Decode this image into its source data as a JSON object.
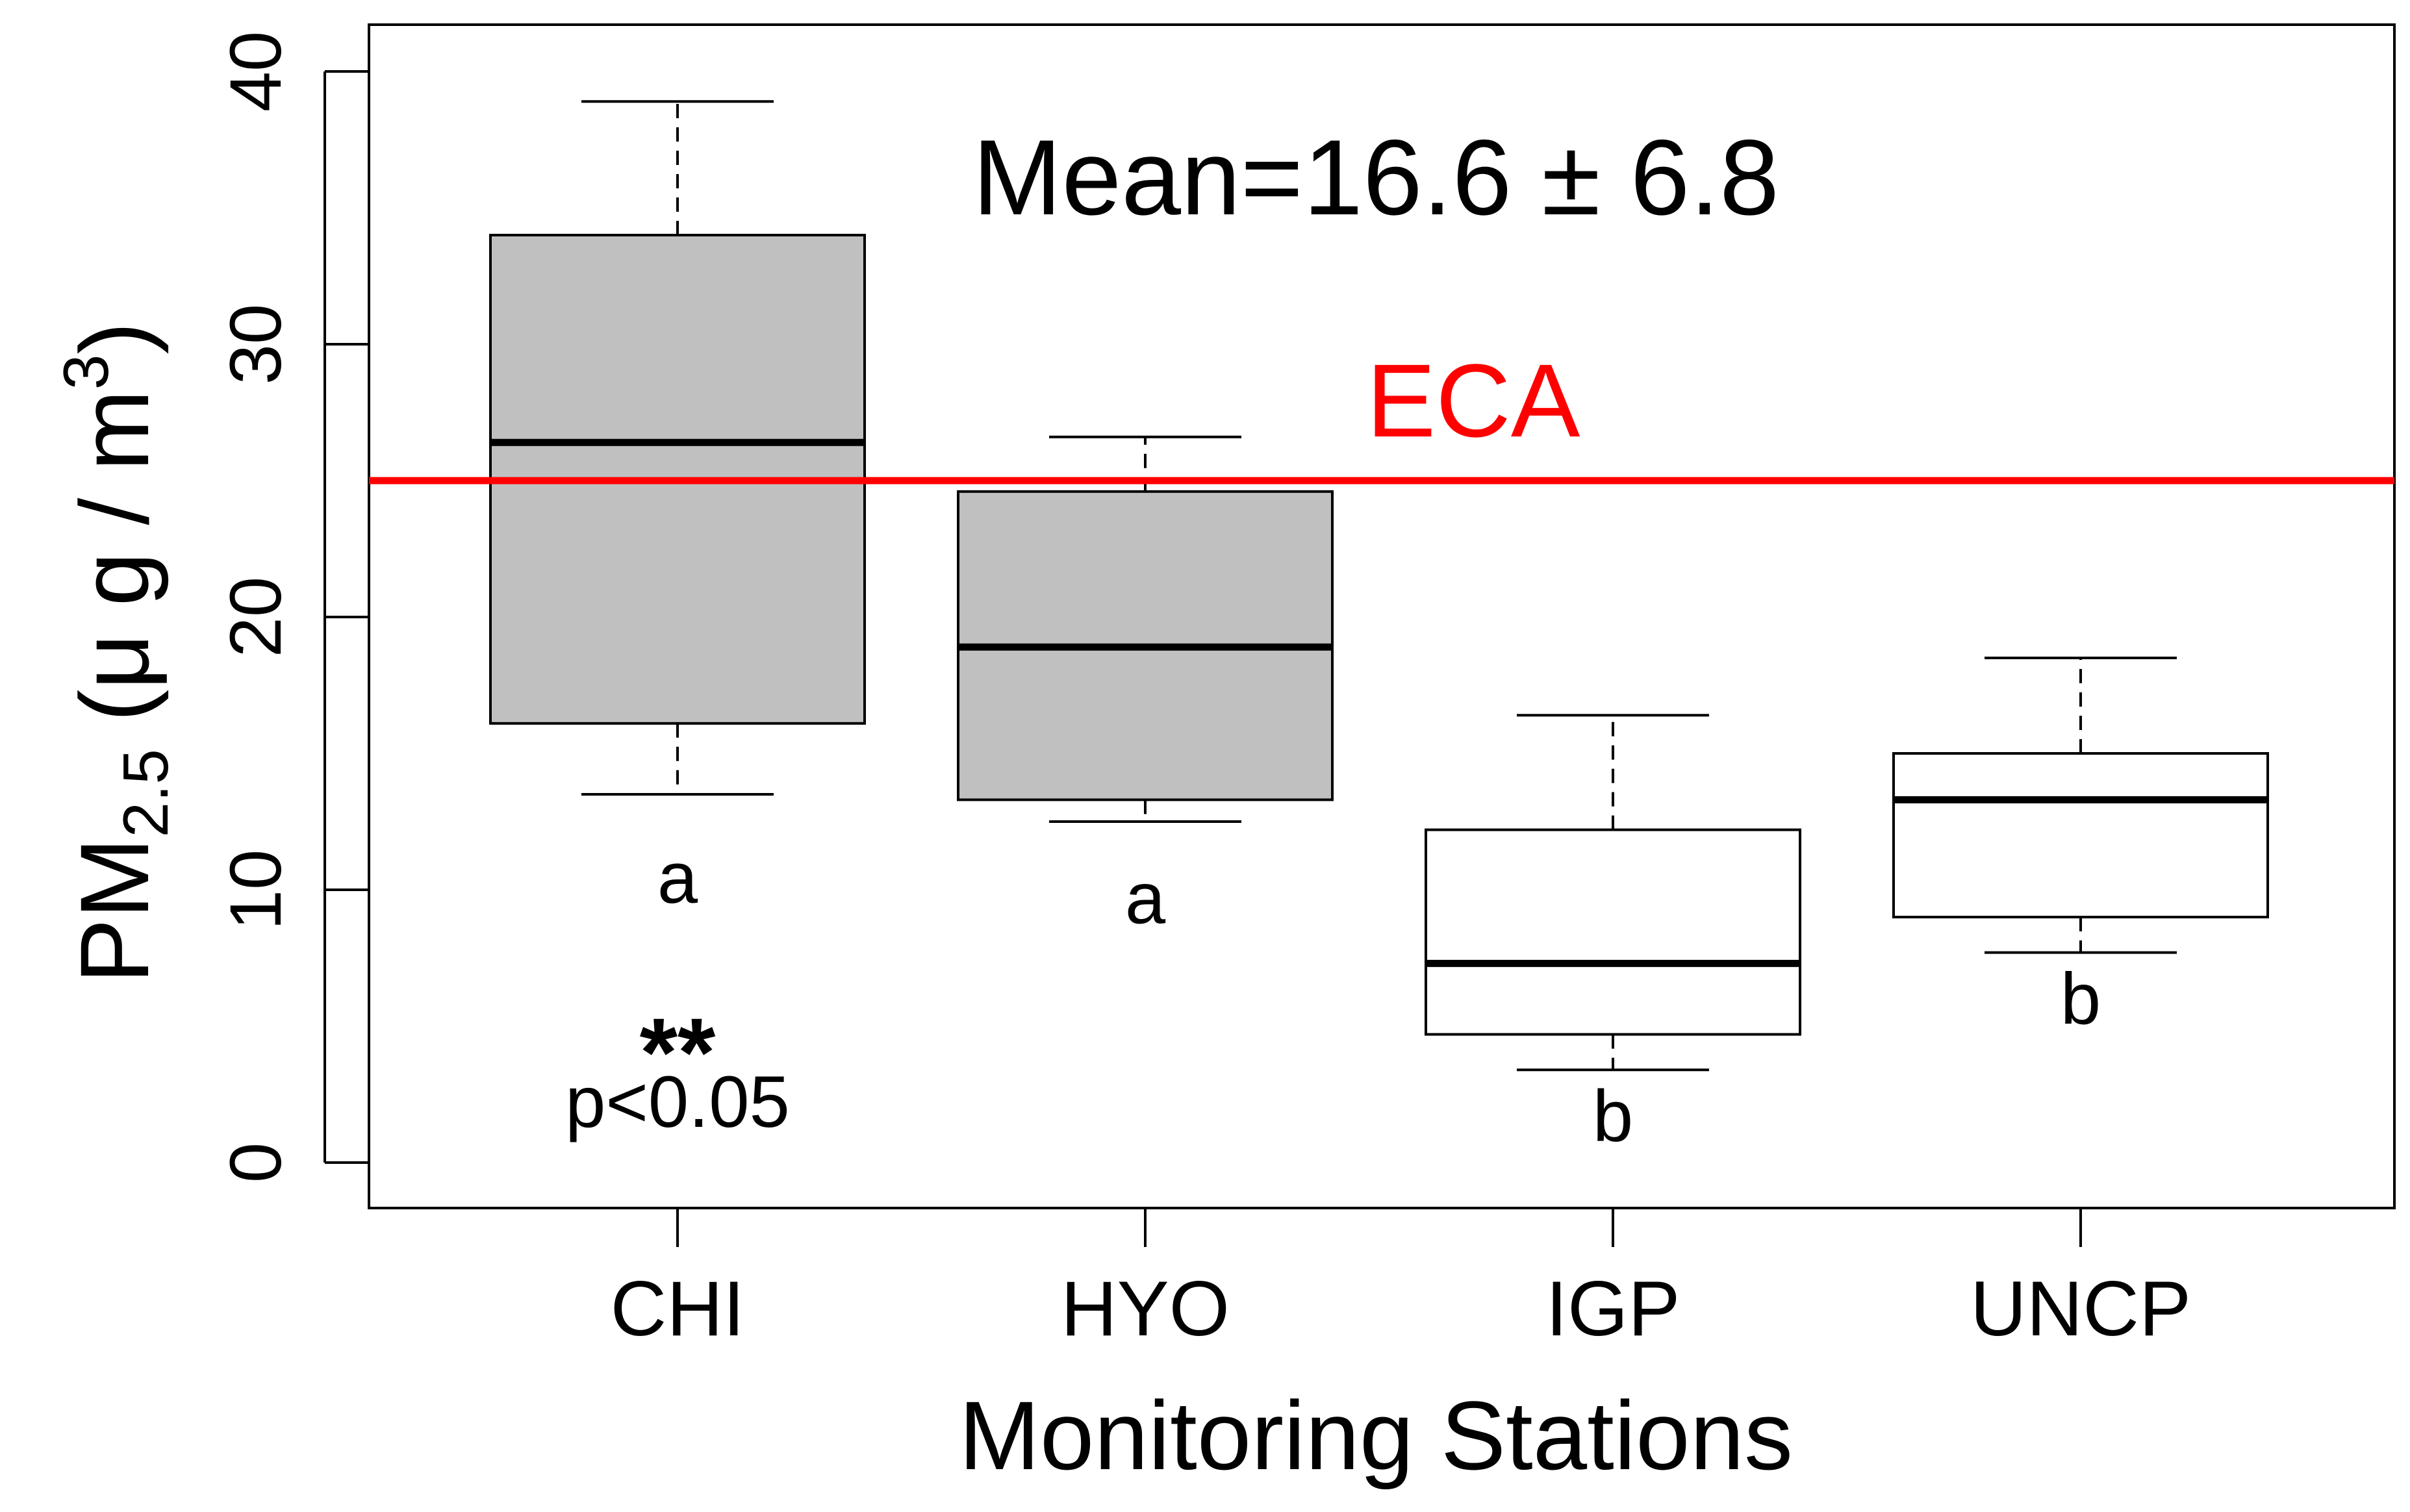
{
  "chart_data": {
    "type": "boxplot",
    "xlabel": "Monitoring Stations",
    "ylabel": {
      "main": "PM",
      "subscript": "2.5",
      "unit_prefix": " (μ g / m",
      "superscript": "3",
      "unit_suffix": ")"
    },
    "ylim": [
      0,
      40
    ],
    "yticks": [
      "0",
      "10",
      "20",
      "30",
      "40"
    ],
    "categories": [
      "CHI",
      "HYO",
      "IGP",
      "UNCP"
    ],
    "boxes": [
      {
        "name": "CHI",
        "whisker_low": 13.5,
        "q1": 16.1,
        "median": 26.4,
        "q3": 34.0,
        "whisker_high": 38.9,
        "fill": "#c0c0c0",
        "group_letter": "a"
      },
      {
        "name": "HYO",
        "whisker_low": 12.5,
        "q1": 13.3,
        "median": 18.9,
        "q3": 24.6,
        "whisker_high": 26.6,
        "fill": "#c0c0c0",
        "group_letter": "a"
      },
      {
        "name": "IGP",
        "whisker_low": 3.4,
        "q1": 4.7,
        "median": 7.3,
        "q3": 12.2,
        "whisker_high": 16.4,
        "fill": "#ffffff",
        "group_letter": "b"
      },
      {
        "name": "UNCP",
        "whisker_low": 7.7,
        "q1": 9.0,
        "median": 13.3,
        "q3": 15.0,
        "whisker_high": 18.5,
        "fill": "#ffffff",
        "group_letter": "b"
      }
    ],
    "reference_line": {
      "label": "ECA",
      "value": 25,
      "color": "#ff0000"
    },
    "annotations": {
      "mean_text": "Mean=16.6 ± 6.8",
      "significance_stars": "**",
      "significance_text": "p<0.05"
    }
  }
}
